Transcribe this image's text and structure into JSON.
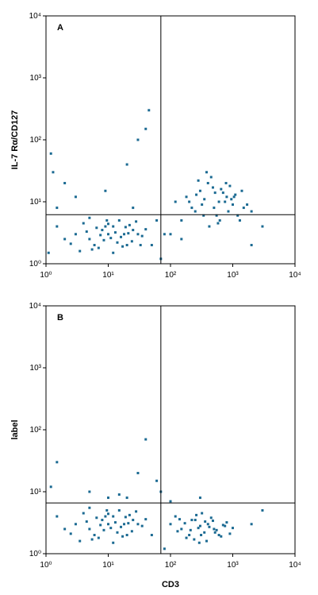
{
  "chart_data": [
    {
      "type": "scatter",
      "panel": "A",
      "ylabel": "IL-7 Rα/CD127",
      "log": true,
      "color": "#1b6a92",
      "xlim": [
        1,
        10000
      ],
      "ylim": [
        1,
        10000
      ],
      "xticks": [
        {
          "value": 1,
          "label": "10⁰"
        },
        {
          "value": 10,
          "label": "10¹"
        },
        {
          "value": 100,
          "label": "10²"
        },
        {
          "value": 1000,
          "label": "10³"
        },
        {
          "value": 10000,
          "label": "10⁴"
        }
      ],
      "yticks": [
        {
          "value": 1,
          "label": "10⁰"
        },
        {
          "value": 10,
          "label": "10¹"
        },
        {
          "value": 100,
          "label": "10²"
        },
        {
          "value": 1000,
          "label": "10³"
        },
        {
          "value": 10000,
          "label": "10⁴"
        }
      ],
      "gate_x": 70,
      "gate_y": 6.2,
      "x": [
        3,
        5,
        8,
        12,
        20,
        30,
        4,
        6,
        10,
        15,
        25,
        2,
        7,
        9,
        14,
        18,
        35,
        5,
        11,
        22,
        3.5,
        6.5,
        8.5,
        13,
        17,
        28,
        4.5,
        9.5,
        16,
        40,
        2.5,
        7.5,
        12,
        19,
        24,
        1.5,
        5.5,
        10,
        21,
        33,
        200,
        300,
        500,
        800,
        1200,
        400,
        600,
        1000,
        250,
        700,
        150,
        350,
        900,
        1500,
        450,
        550,
        1100,
        320,
        650,
        2000,
        180,
        420,
        750,
        1300,
        280,
        520,
        850,
        380,
        950,
        1700,
        220,
        480,
        620,
        1050,
        260,
        580,
        780,
        340,
        1400,
        120,
        1.2,
        1.5,
        2,
        60,
        80,
        40,
        50,
        100,
        30,
        1.1,
        3,
        150,
        25,
        2000,
        3000,
        1.3,
        45,
        70,
        9,
        20
      ],
      "y": [
        3,
        2.5,
        3.5,
        4,
        2,
        3,
        4.5,
        2,
        3,
        5,
        3.5,
        2.5,
        1.8,
        4,
        2.2,
        3,
        2.8,
        5.5,
        2.6,
        4.2,
        1.6,
        3.8,
        2.4,
        3.2,
        1.9,
        4.8,
        3.3,
        5,
        2.7,
        3.6,
        2.1,
        2.9,
        1.5,
        3.9,
        2.3,
        4,
        1.7,
        4.4,
        3.1,
        2,
        10,
        15,
        8,
        12,
        6,
        20,
        10,
        9,
        7,
        14,
        5,
        11,
        18,
        8,
        25,
        6,
        13,
        9,
        16,
        7,
        12,
        4,
        10,
        5,
        22,
        14,
        7,
        30,
        11,
        9,
        8,
        17,
        5,
        12,
        13,
        4.5,
        20,
        6,
        15,
        10,
        60,
        8,
        20,
        5,
        3,
        150,
        2,
        3,
        100,
        1.5,
        12,
        2.5,
        8,
        2,
        4,
        30,
        300,
        1.2,
        15,
        40
      ]
    },
    {
      "type": "scatter",
      "panel": "B",
      "ylabel": "label",
      "xlabel": "CD3",
      "log": true,
      "color": "#1b6a92",
      "xlim": [
        1,
        10000
      ],
      "ylim": [
        1,
        10000
      ],
      "xticks": [
        {
          "value": 1,
          "label": "10⁰"
        },
        {
          "value": 10,
          "label": "10¹"
        },
        {
          "value": 100,
          "label": "10²"
        },
        {
          "value": 1000,
          "label": "10³"
        },
        {
          "value": 10000,
          "label": "10⁴"
        }
      ],
      "yticks": [
        {
          "value": 1,
          "label": "10⁰"
        },
        {
          "value": 10,
          "label": "10¹"
        },
        {
          "value": 100,
          "label": "10²"
        },
        {
          "value": 1000,
          "label": "10³"
        },
        {
          "value": 10000,
          "label": "10⁴"
        }
      ],
      "gate_x": 70,
      "gate_y": 6.6,
      "x": [
        3,
        5,
        8,
        12,
        20,
        30,
        4,
        6,
        10,
        15,
        25,
        2,
        7,
        9,
        14,
        18,
        35,
        5,
        11,
        22,
        3.5,
        6.5,
        8.5,
        13,
        17,
        28,
        4.5,
        9.5,
        16,
        40,
        2.5,
        7.5,
        12,
        19,
        24,
        1.5,
        5.5,
        10,
        21,
        50,
        100,
        150,
        200,
        250,
        300,
        350,
        400,
        500,
        600,
        800,
        120,
        180,
        220,
        280,
        320,
        380,
        450,
        550,
        700,
        900,
        130,
        170,
        240,
        260,
        310,
        420,
        480,
        650,
        1000,
        140,
        210,
        290,
        360,
        520,
        750,
        1.2,
        40,
        70,
        20,
        60,
        100,
        5,
        300,
        2000,
        30,
        15,
        1.5,
        80,
        10,
        3000
      ],
      "y": [
        3,
        2.5,
        3.5,
        4,
        2,
        3,
        4.5,
        2,
        3,
        5,
        3.5,
        2.5,
        1.8,
        4,
        2.2,
        3,
        2.8,
        5.5,
        2.6,
        4.2,
        1.6,
        3.8,
        2.4,
        3.2,
        1.9,
        4.8,
        3.3,
        5,
        2.7,
        3.6,
        2.1,
        2.9,
        1.5,
        3.9,
        2.3,
        4,
        1.7,
        4.4,
        3.1,
        2,
        3,
        2.5,
        2,
        3.5,
        2.8,
        2.2,
        3,
        2.5,
        2,
        3.2,
        4,
        1.8,
        3.5,
        2.6,
        4.5,
        1.6,
        3.8,
        2.4,
        2.9,
        2.1,
        2.3,
        3.1,
        1.7,
        4.2,
        2,
        2.7,
        3.4,
        1.9,
        2.6,
        3.6,
        2.4,
        1.5,
        3.3,
        2.2,
        2.8,
        12,
        70,
        10,
        8,
        15,
        7,
        10,
        8,
        3,
        20,
        9,
        30,
        1.2,
        8,
        5
      ]
    }
  ]
}
